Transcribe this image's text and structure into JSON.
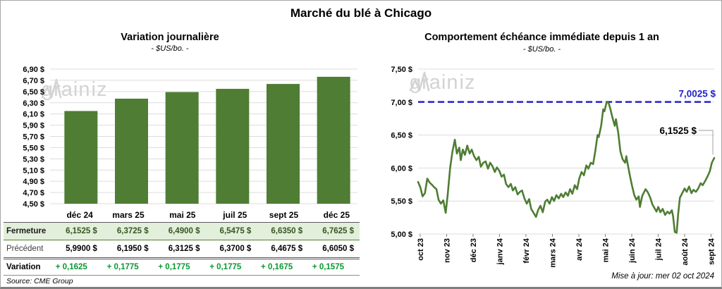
{
  "page": {
    "title": "Marché du blé à Chicago",
    "source": "Source: CME Group",
    "update_note": "Mise à jour: mer 02 oct 2024",
    "watermark_prefix": "grain",
    "watermark_suffix": "iz"
  },
  "colors": {
    "green": "#4e7d33",
    "blue": "#2222cc",
    "gridline": "#dcdcdc",
    "table_row_bg": "#e2efda",
    "fermeture_text": "#375623",
    "variation_green": "#089930",
    "watermark": "#d3d3d3",
    "leader_gray": "#b0b0b0"
  },
  "table": {
    "columns": [
      "déc 24",
      "mars 25",
      "mai 25",
      "juil 25",
      "sept 25",
      "déc 25"
    ],
    "rows": [
      {
        "kind": "fermeture",
        "label": "Fermeture",
        "values": [
          "6,1525 $",
          "6,3725 $",
          "6,4900 $",
          "6,5475 $",
          "6,6350 $",
          "6,7625 $"
        ]
      },
      {
        "kind": "precedent",
        "label": "Précédent",
        "values": [
          "5,9900 $",
          "6,1950 $",
          "6,3125 $",
          "6,3700 $",
          "6,4675 $",
          "6,6050 $"
        ]
      },
      {
        "kind": "variation",
        "label": "Variation",
        "values": [
          "+ 0,1625",
          "+ 0,1775",
          "+ 0,1775",
          "+ 0,1775",
          "+ 0,1675",
          "+ 0,1575"
        ]
      }
    ]
  },
  "chart_data": [
    {
      "type": "bar",
      "title": "Variation journalière",
      "subtitle": "- $US/bo. -",
      "ylabel": "$US/bo.",
      "categories": [
        "déc 24",
        "mars 25",
        "mai 25",
        "juil 25",
        "sept 25",
        "déc 25"
      ],
      "values": [
        6.1525,
        6.3725,
        6.49,
        6.5475,
        6.635,
        6.7625
      ],
      "ylim": [
        4.5,
        6.9
      ],
      "ytick_step": 0.2,
      "ytick_labels": [
        "4,50 $",
        "4,70 $",
        "4,90 $",
        "5,10 $",
        "5,30 $",
        "5,50 $",
        "5,70 $",
        "5,90 $",
        "6,10 $",
        "6,30 $",
        "6,50 $",
        "6,70 $",
        "6,90 $"
      ],
      "grid": true,
      "legend": "none"
    },
    {
      "type": "line",
      "title": "Comportement échéance immédiate depuis 1 an",
      "subtitle": "- $US/bo. -",
      "ylabel": "$US/bo.",
      "ylim": [
        5.0,
        7.5
      ],
      "ytick_step": 0.5,
      "ytick_labels": [
        "5,00 $",
        "5,50 $",
        "6,00 $",
        "6,50 $",
        "7,00 $",
        "7,50 $"
      ],
      "x_tick_labels": [
        "oct 23",
        "nov 23",
        "déc 23",
        "janv 24",
        "févr 24",
        "mars 24",
        "avr 24",
        "mai 24",
        "juin 24",
        "juil 24",
        "août 24",
        "sept 24"
      ],
      "grid": true,
      "legend": "none",
      "reference_line": {
        "value": 7.0025,
        "label": "7,0025 $",
        "style": "dashed"
      },
      "last_point": {
        "value": 6.1525,
        "label": "6,1525 $"
      },
      "series": [
        {
          "name": "échéance immédiate",
          "points": [
            [
              0.0,
              5.79
            ],
            [
              0.008,
              5.7
            ],
            [
              0.015,
              5.57
            ],
            [
              0.023,
              5.62
            ],
            [
              0.031,
              5.84
            ],
            [
              0.039,
              5.78
            ],
            [
              0.046,
              5.75
            ],
            [
              0.054,
              5.71
            ],
            [
              0.062,
              5.68
            ],
            [
              0.069,
              5.52
            ],
            [
              0.077,
              5.46
            ],
            [
              0.085,
              5.51
            ],
            [
              0.093,
              5.32
            ],
            [
              0.1,
              5.6
            ],
            [
              0.108,
              6.0
            ],
            [
              0.116,
              6.25
            ],
            [
              0.124,
              6.43
            ],
            [
              0.131,
              6.22
            ],
            [
              0.139,
              6.31
            ],
            [
              0.144,
              6.12
            ],
            [
              0.151,
              6.28
            ],
            [
              0.158,
              6.2
            ],
            [
              0.166,
              6.34
            ],
            [
              0.174,
              6.22
            ],
            [
              0.181,
              6.28
            ],
            [
              0.189,
              6.18
            ],
            [
              0.197,
              6.12
            ],
            [
              0.205,
              6.17
            ],
            [
              0.212,
              6.02
            ],
            [
              0.22,
              6.08
            ],
            [
              0.228,
              6.1
            ],
            [
              0.236,
              5.99
            ],
            [
              0.243,
              6.08
            ],
            [
              0.251,
              6.03
            ],
            [
              0.259,
              5.94
            ],
            [
              0.266,
              6.01
            ],
            [
              0.274,
              5.96
            ],
            [
              0.282,
              5.87
            ],
            [
              0.29,
              5.9
            ],
            [
              0.297,
              5.76
            ],
            [
              0.305,
              5.71
            ],
            [
              0.313,
              5.76
            ],
            [
              0.32,
              5.66
            ],
            [
              0.328,
              5.71
            ],
            [
              0.336,
              5.6
            ],
            [
              0.344,
              5.64
            ],
            [
              0.351,
              5.66
            ],
            [
              0.359,
              5.54
            ],
            [
              0.367,
              5.46
            ],
            [
              0.375,
              5.53
            ],
            [
              0.382,
              5.38
            ],
            [
              0.39,
              5.32
            ],
            [
              0.398,
              5.26
            ],
            [
              0.405,
              5.36
            ],
            [
              0.413,
              5.43
            ],
            [
              0.421,
              5.33
            ],
            [
              0.429,
              5.49
            ],
            [
              0.436,
              5.52
            ],
            [
              0.444,
              5.46
            ],
            [
              0.452,
              5.56
            ],
            [
              0.459,
              5.5
            ],
            [
              0.467,
              5.59
            ],
            [
              0.475,
              5.54
            ],
            [
              0.483,
              5.61
            ],
            [
              0.49,
              5.56
            ],
            [
              0.498,
              5.63
            ],
            [
              0.506,
              5.58
            ],
            [
              0.513,
              5.68
            ],
            [
              0.521,
              5.61
            ],
            [
              0.529,
              5.74
            ],
            [
              0.537,
              5.68
            ],
            [
              0.544,
              5.84
            ],
            [
              0.552,
              5.94
            ],
            [
              0.56,
              5.89
            ],
            [
              0.568,
              6.04
            ],
            [
              0.575,
              5.99
            ],
            [
              0.583,
              6.08
            ],
            [
              0.591,
              6.06
            ],
            [
              0.598,
              6.25
            ],
            [
              0.606,
              6.5
            ],
            [
              0.61,
              6.47
            ],
            [
              0.618,
              6.64
            ],
            [
              0.625,
              6.89
            ],
            [
              0.629,
              6.86
            ],
            [
              0.637,
              7.0
            ],
            [
              0.643,
              6.99
            ],
            [
              0.649,
              6.9
            ],
            [
              0.656,
              6.77
            ],
            [
              0.664,
              6.64
            ],
            [
              0.668,
              6.74
            ],
            [
              0.676,
              6.53
            ],
            [
              0.683,
              6.25
            ],
            [
              0.691,
              6.13
            ],
            [
              0.699,
              6.08
            ],
            [
              0.703,
              6.18
            ],
            [
              0.707,
              6.08
            ],
            [
              0.714,
              5.91
            ],
            [
              0.722,
              5.74
            ],
            [
              0.73,
              5.59
            ],
            [
              0.737,
              5.52
            ],
            [
              0.745,
              5.57
            ],
            [
              0.749,
              5.41
            ],
            [
              0.757,
              5.58
            ],
            [
              0.768,
              5.68
            ],
            [
              0.776,
              5.63
            ],
            [
              0.784,
              5.55
            ],
            [
              0.791,
              5.45
            ],
            [
              0.805,
              5.34
            ],
            [
              0.811,
              5.41
            ],
            [
              0.818,
              5.33
            ],
            [
              0.826,
              5.38
            ],
            [
              0.834,
              5.29
            ],
            [
              0.842,
              5.34
            ],
            [
              0.849,
              5.31
            ],
            [
              0.857,
              5.36
            ],
            [
              0.861,
              5.27
            ],
            [
              0.867,
              5.03
            ],
            [
              0.873,
              5.02
            ],
            [
              0.878,
              5.3
            ],
            [
              0.884,
              5.55
            ],
            [
              0.892,
              5.62
            ],
            [
              0.9,
              5.69
            ],
            [
              0.907,
              5.64
            ],
            [
              0.915,
              5.72
            ],
            [
              0.923,
              5.62
            ],
            [
              0.93,
              5.67
            ],
            [
              0.938,
              5.64
            ],
            [
              0.946,
              5.69
            ],
            [
              0.954,
              5.77
            ],
            [
              0.961,
              5.74
            ],
            [
              0.969,
              5.8
            ],
            [
              0.977,
              5.87
            ],
            [
              0.985,
              5.95
            ],
            [
              0.992,
              6.08
            ],
            [
              1.0,
              6.1525
            ]
          ]
        }
      ]
    }
  ]
}
